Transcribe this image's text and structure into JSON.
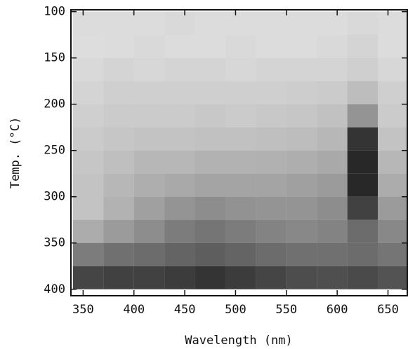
{
  "chart_data": {
    "type": "heatmap",
    "x_label": "Wavelength (nm)",
    "y_label": "Temp. (°C)",
    "xlim": [
      338,
      669
    ],
    "ylim": [
      98,
      407
    ],
    "y_reversed": true,
    "xticks": [
      350,
      400,
      450,
      500,
      550,
      600,
      650
    ],
    "yticks": [
      100,
      150,
      200,
      250,
      300,
      350,
      400
    ],
    "color": "#111111",
    "xbins": [
      340,
      370,
      400,
      430,
      460,
      490,
      520,
      550,
      580,
      610,
      640,
      670
    ],
    "ybins": [
      100,
      125,
      150,
      175,
      200,
      225,
      250,
      275,
      300,
      325,
      350,
      375,
      400
    ],
    "density": [
      [
        0.15,
        0.15,
        0.15,
        0.16,
        0.15,
        0.15,
        0.15,
        0.15,
        0.15,
        0.16,
        0.15
      ],
      [
        0.14,
        0.15,
        0.16,
        0.15,
        0.15,
        0.16,
        0.15,
        0.15,
        0.16,
        0.18,
        0.15
      ],
      [
        0.16,
        0.18,
        0.17,
        0.18,
        0.18,
        0.17,
        0.18,
        0.18,
        0.18,
        0.2,
        0.17
      ],
      [
        0.18,
        0.2,
        0.2,
        0.2,
        0.2,
        0.2,
        0.2,
        0.21,
        0.22,
        0.28,
        0.2
      ],
      [
        0.2,
        0.22,
        0.22,
        0.22,
        0.23,
        0.22,
        0.23,
        0.24,
        0.26,
        0.45,
        0.22
      ],
      [
        0.22,
        0.24,
        0.25,
        0.25,
        0.26,
        0.26,
        0.27,
        0.28,
        0.3,
        0.85,
        0.25
      ],
      [
        0.24,
        0.27,
        0.3,
        0.3,
        0.32,
        0.32,
        0.33,
        0.34,
        0.36,
        0.9,
        0.3
      ],
      [
        0.25,
        0.3,
        0.34,
        0.36,
        0.38,
        0.38,
        0.38,
        0.4,
        0.42,
        0.9,
        0.35
      ],
      [
        0.25,
        0.32,
        0.4,
        0.45,
        0.48,
        0.46,
        0.45,
        0.45,
        0.48,
        0.8,
        0.42
      ],
      [
        0.35,
        0.42,
        0.48,
        0.55,
        0.58,
        0.55,
        0.52,
        0.5,
        0.52,
        0.62,
        0.5
      ],
      [
        0.55,
        0.6,
        0.62,
        0.65,
        0.68,
        0.65,
        0.62,
        0.6,
        0.6,
        0.62,
        0.58
      ],
      [
        0.78,
        0.8,
        0.8,
        0.82,
        0.85,
        0.82,
        0.78,
        0.75,
        0.74,
        0.76,
        0.72
      ]
    ]
  }
}
